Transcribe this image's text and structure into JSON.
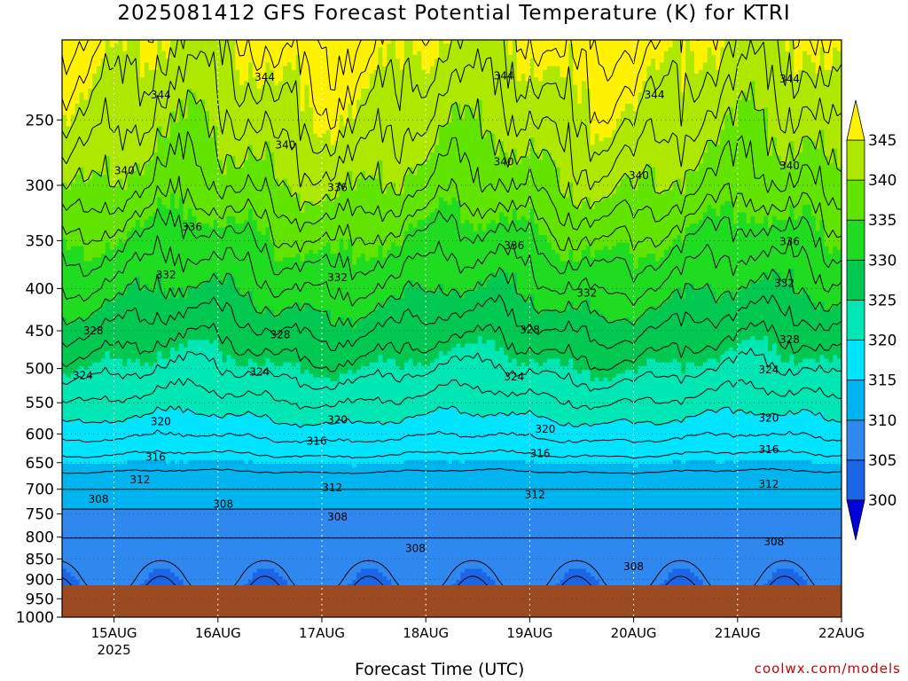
{
  "title": "2025081412 GFS Forecast Potential Temperature (K) for KTRI",
  "x_axis_title": "Forecast Time (UTC)",
  "credit": "coolwx.com/models",
  "chart_data": {
    "type": "heatmap",
    "title": "2025081412 GFS Forecast Potential Temperature (K) for KTRI",
    "xlabel": "Forecast Time (UTC)",
    "ylabel": "",
    "y_scale": "log-pressure",
    "y_reversed": true,
    "ylim": [
      1000,
      200
    ],
    "y_ticks": [
      250,
      300,
      350,
      400,
      450,
      500,
      550,
      600,
      650,
      700,
      750,
      800,
      850,
      900,
      950,
      1000
    ],
    "x_ticks": [
      "15AUG",
      "16AUG",
      "17AUG",
      "18AUG",
      "19AUG",
      "20AUG",
      "21AUG",
      "22AUG"
    ],
    "x_year_label": "2025",
    "xlim_days": [
      14.5,
      22.0
    ],
    "grid": true,
    "ground_level_hpa": 960,
    "colorbar": {
      "levels": [
        300,
        305,
        310,
        315,
        320,
        325,
        330,
        335,
        340,
        345
      ],
      "colors": [
        "#0000d8",
        "#1a66e6",
        "#2e88f0",
        "#00b4f0",
        "#00e4ff",
        "#00e6b4",
        "#00c850",
        "#20dc20",
        "#60e400",
        "#aee800",
        "#fff200"
      ]
    },
    "theta_profile_K": [
      {
        "p": 960,
        "theta": 306
      },
      {
        "p": 900,
        "theta": 307
      },
      {
        "p": 850,
        "theta": 307.5
      },
      {
        "p": 800,
        "theta": 308
      },
      {
        "p": 750,
        "theta": 309.5
      },
      {
        "p": 700,
        "theta": 312
      },
      {
        "p": 650,
        "theta": 315
      },
      {
        "p": 600,
        "theta": 318.5
      },
      {
        "p": 550,
        "theta": 321.5
      },
      {
        "p": 500,
        "theta": 324.5
      },
      {
        "p": 450,
        "theta": 327.5
      },
      {
        "p": 400,
        "theta": 331
      },
      {
        "p": 350,
        "theta": 334.5
      },
      {
        "p": 300,
        "theta": 339
      },
      {
        "p": 250,
        "theta": 342.5
      },
      {
        "p": 200,
        "theta": 346
      }
    ],
    "contour_interval_K": 2,
    "contour_labels": [
      {
        "value": "344",
        "day": 15.45,
        "p": 233
      },
      {
        "value": "344",
        "day": 16.45,
        "p": 222
      },
      {
        "value": "344",
        "day": 18.75,
        "p": 221
      },
      {
        "value": "344",
        "day": 20.2,
        "p": 233
      },
      {
        "value": "344",
        "day": 21.5,
        "p": 223
      },
      {
        "value": "340",
        "day": 15.1,
        "p": 288
      },
      {
        "value": "340",
        "day": 16.65,
        "p": 268
      },
      {
        "value": "340",
        "day": 18.75,
        "p": 281
      },
      {
        "value": "340",
        "day": 20.05,
        "p": 292
      },
      {
        "value": "340",
        "day": 21.5,
        "p": 284
      },
      {
        "value": "336",
        "day": 15.75,
        "p": 337
      },
      {
        "value": "336",
        "day": 17.15,
        "p": 302
      },
      {
        "value": "336",
        "day": 18.85,
        "p": 355
      },
      {
        "value": "336",
        "day": 21.5,
        "p": 351
      },
      {
        "value": "332",
        "day": 15.5,
        "p": 385
      },
      {
        "value": "332",
        "day": 17.15,
        "p": 388
      },
      {
        "value": "332",
        "day": 19.55,
        "p": 405
      },
      {
        "value": "332",
        "day": 21.45,
        "p": 394
      },
      {
        "value": "328",
        "day": 14.8,
        "p": 450
      },
      {
        "value": "328",
        "day": 16.6,
        "p": 455
      },
      {
        "value": "328",
        "day": 19.0,
        "p": 449
      },
      {
        "value": "328",
        "day": 21.5,
        "p": 461
      },
      {
        "value": "324",
        "day": 14.7,
        "p": 510
      },
      {
        "value": "324",
        "day": 16.4,
        "p": 505
      },
      {
        "value": "324",
        "day": 18.85,
        "p": 512
      },
      {
        "value": "324",
        "day": 21.3,
        "p": 502
      },
      {
        "value": "320",
        "day": 15.45,
        "p": 580
      },
      {
        "value": "320",
        "day": 17.15,
        "p": 577
      },
      {
        "value": "320",
        "day": 19.15,
        "p": 592
      },
      {
        "value": "320",
        "day": 21.3,
        "p": 574
      },
      {
        "value": "316",
        "day": 15.4,
        "p": 640
      },
      {
        "value": "316",
        "day": 16.95,
        "p": 612
      },
      {
        "value": "316",
        "day": 19.1,
        "p": 634
      },
      {
        "value": "316",
        "day": 21.3,
        "p": 627
      },
      {
        "value": "312",
        "day": 15.25,
        "p": 682
      },
      {
        "value": "312",
        "day": 17.1,
        "p": 697
      },
      {
        "value": "312",
        "day": 19.05,
        "p": 711
      },
      {
        "value": "312",
        "day": 21.3,
        "p": 690
      },
      {
        "value": "308",
        "day": 14.85,
        "p": 720
      },
      {
        "value": "308",
        "day": 16.05,
        "p": 730
      },
      {
        "value": "308",
        "day": 17.15,
        "p": 756
      },
      {
        "value": "308",
        "day": 17.9,
        "p": 826
      },
      {
        "value": "308",
        "day": 20.0,
        "p": 869
      },
      {
        "value": "308",
        "day": 21.35,
        "p": 810
      }
    ]
  }
}
